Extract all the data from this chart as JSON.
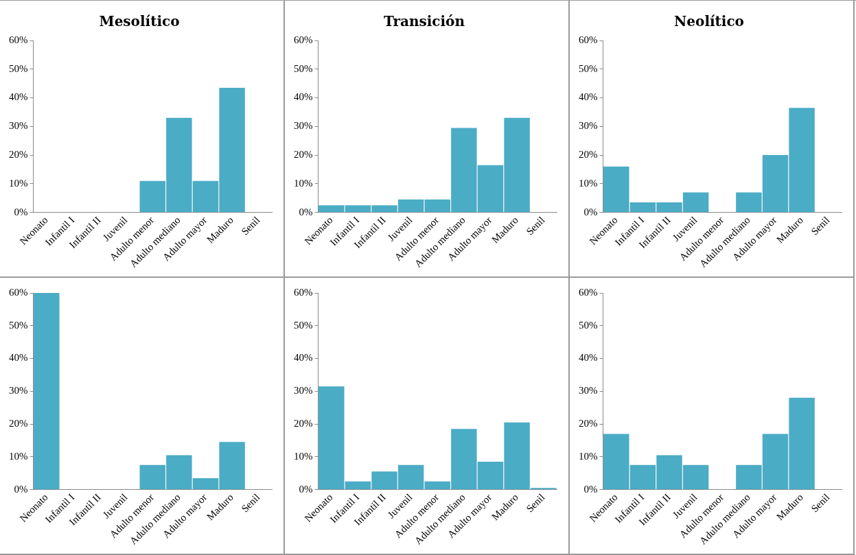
{
  "chart_data": [
    {
      "type": "bar",
      "title": "Mesolítico",
      "categories": [
        "Neonato",
        "Infantil I",
        "Infantil II",
        "Juvenil",
        "Adulto menor",
        "Adulto mediano",
        "Adulto mayor",
        "Maduro",
        "Senil"
      ],
      "values": [
        0,
        0,
        0,
        0,
        11,
        33,
        11,
        43.5,
        0
      ],
      "color": "#4bacc6",
      "ylim": [
        0,
        60
      ],
      "yticks": [
        {
          "value": 0,
          "label": "0%"
        },
        {
          "value": 10,
          "label": "10%"
        },
        {
          "value": 20,
          "label": "20%"
        },
        {
          "value": 30,
          "label": "30%"
        },
        {
          "value": 40,
          "label": "40%"
        },
        {
          "value": 50,
          "label": "50%"
        },
        {
          "value": 60,
          "label": "60%"
        }
      ],
      "grid": false,
      "legend": false
    },
    {
      "type": "bar",
      "title": "Transición",
      "categories": [
        "Neonato",
        "Infantil I",
        "Infantil II",
        "Juvenil",
        "Adulto menor",
        "Adulto mediano",
        "Adulto mayor",
        "Maduro",
        "Senil"
      ],
      "values": [
        2.5,
        2.5,
        2.5,
        4.5,
        4.5,
        29.5,
        16.5,
        33,
        0
      ],
      "color": "#4bacc6",
      "ylim": [
        0,
        60
      ],
      "yticks": [
        {
          "value": 0,
          "label": "0%"
        },
        {
          "value": 10,
          "label": "10%"
        },
        {
          "value": 20,
          "label": "20%"
        },
        {
          "value": 30,
          "label": "30%"
        },
        {
          "value": 40,
          "label": "40%"
        },
        {
          "value": 50,
          "label": "50%"
        },
        {
          "value": 60,
          "label": "60%"
        }
      ],
      "grid": false,
      "legend": false
    },
    {
      "type": "bar",
      "title": "Neolítico",
      "categories": [
        "Neonato",
        "Infantil I",
        "Infantil II",
        "Juvenil",
        "Adulto menor",
        "Adulto mediano",
        "Adulto mayor",
        "Maduro",
        "Senil"
      ],
      "values": [
        16,
        3.5,
        3.5,
        7,
        0,
        7,
        20,
        36.5,
        0
      ],
      "color": "#4bacc6",
      "ylim": [
        0,
        60
      ],
      "yticks": [
        {
          "value": 0,
          "label": "0%"
        },
        {
          "value": 10,
          "label": "10%"
        },
        {
          "value": 20,
          "label": "20%"
        },
        {
          "value": 30,
          "label": "30%"
        },
        {
          "value": 40,
          "label": "40%"
        },
        {
          "value": 50,
          "label": "50%"
        },
        {
          "value": 60,
          "label": "60%"
        }
      ],
      "grid": false,
      "legend": false
    },
    {
      "type": "bar",
      "categories": [
        "Neonato",
        "Infantil I",
        "Infantil II",
        "Juvenil",
        "Adulto menor",
        "Adulto mediano",
        "Adulto mayor",
        "Maduro",
        "Senil"
      ],
      "values": [
        60,
        0,
        0,
        0,
        7.5,
        10.5,
        3.5,
        14.5,
        0
      ],
      "color": "#4bacc6",
      "ylim": [
        0,
        60
      ],
      "yticks": [
        {
          "value": 0,
          "label": "0%"
        },
        {
          "value": 10,
          "label": "10%"
        },
        {
          "value": 20,
          "label": "20%"
        },
        {
          "value": 30,
          "label": "30%"
        },
        {
          "value": 40,
          "label": "40%"
        },
        {
          "value": 50,
          "label": "50%"
        },
        {
          "value": 60,
          "label": "60%"
        }
      ],
      "grid": false,
      "legend": false
    },
    {
      "type": "bar",
      "categories": [
        "Neonato",
        "Infantil I",
        "Infantil II",
        "Juvenil",
        "Adulto menor",
        "Adulto mediano",
        "Adulto mayor",
        "Maduro",
        "Senil"
      ],
      "values": [
        31.5,
        2.5,
        5.5,
        7.5,
        2.5,
        18.5,
        8.5,
        20.5,
        0.5
      ],
      "color": "#4bacc6",
      "ylim": [
        0,
        60
      ],
      "yticks": [
        {
          "value": 0,
          "label": "0%"
        },
        {
          "value": 10,
          "label": "10%"
        },
        {
          "value": 20,
          "label": "20%"
        },
        {
          "value": 30,
          "label": "30%"
        },
        {
          "value": 40,
          "label": "40%"
        },
        {
          "value": 50,
          "label": "50%"
        },
        {
          "value": 60,
          "label": "60%"
        }
      ],
      "grid": false,
      "legend": false
    },
    {
      "type": "bar",
      "categories": [
        "Neonato",
        "Infantil I",
        "Infantil II",
        "Juvenil",
        "Adulto menor",
        "Adulto mediano",
        "Adulto mayor",
        "Maduro",
        "Senil"
      ],
      "values": [
        17,
        7.5,
        10.5,
        7.5,
        0,
        7.5,
        17,
        28,
        0
      ],
      "color": "#4bacc6",
      "ylim": [
        0,
        60
      ],
      "yticks": [
        {
          "value": 0,
          "label": "0%"
        },
        {
          "value": 10,
          "label": "10%"
        },
        {
          "value": 20,
          "label": "20%"
        },
        {
          "value": 30,
          "label": "30%"
        },
        {
          "value": 40,
          "label": "40%"
        },
        {
          "value": 50,
          "label": "50%"
        },
        {
          "value": 60,
          "label": "60%"
        }
      ],
      "grid": false,
      "legend": false
    }
  ]
}
